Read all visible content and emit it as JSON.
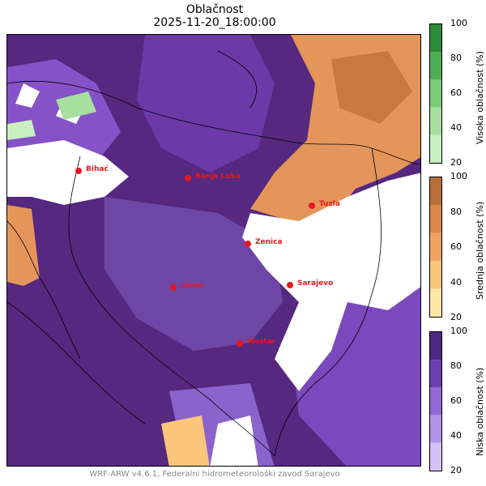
{
  "title": {
    "line1": "Oblačnost",
    "line2": "2025-11-20_18:00:00"
  },
  "footer": "WRF-ARW v4.6.1, Federalni hidrometeorološki zavod Sarajevo",
  "cities": [
    {
      "name": "Bihać"
    },
    {
      "name": "Banja Luka"
    },
    {
      "name": "Tuzla"
    },
    {
      "name": "Zenica"
    },
    {
      "name": "Sarajevo"
    },
    {
      "name": "Livno"
    },
    {
      "name": "Mostar"
    }
  ],
  "colorbars": [
    {
      "id": "visoka",
      "label": "Visoka oblačnost (%)",
      "ticks": [
        "20",
        "40",
        "60",
        "80",
        "100"
      ],
      "colors": [
        "#c7efc0",
        "#a6dfa0",
        "#7dcb77",
        "#4fae52",
        "#2d8a3a"
      ]
    },
    {
      "id": "srednja",
      "label": "Srednja oblačnost (%)",
      "ticks": [
        "20",
        "40",
        "60",
        "80",
        "100"
      ],
      "colors": [
        "#fde7a6",
        "#fbc57a",
        "#f0a25e",
        "#d98848",
        "#b8703a"
      ]
    },
    {
      "id": "niska",
      "label": "Niska oblačnost (%)",
      "ticks": [
        "20",
        "40",
        "60",
        "80",
        "100"
      ],
      "colors": [
        "#d4c2f7",
        "#b394ea",
        "#9368d6",
        "#6e3fb0",
        "#4e2783"
      ]
    }
  ],
  "colors": {
    "city_marker": "#e8171d",
    "city_label": "#e8171d",
    "border_line": "#000000",
    "deep_purple": "#56287f",
    "purple": "#6b3aa8",
    "light_purple": "#a47cde",
    "orange": "#e4965a",
    "clear": "#ffffff"
  }
}
